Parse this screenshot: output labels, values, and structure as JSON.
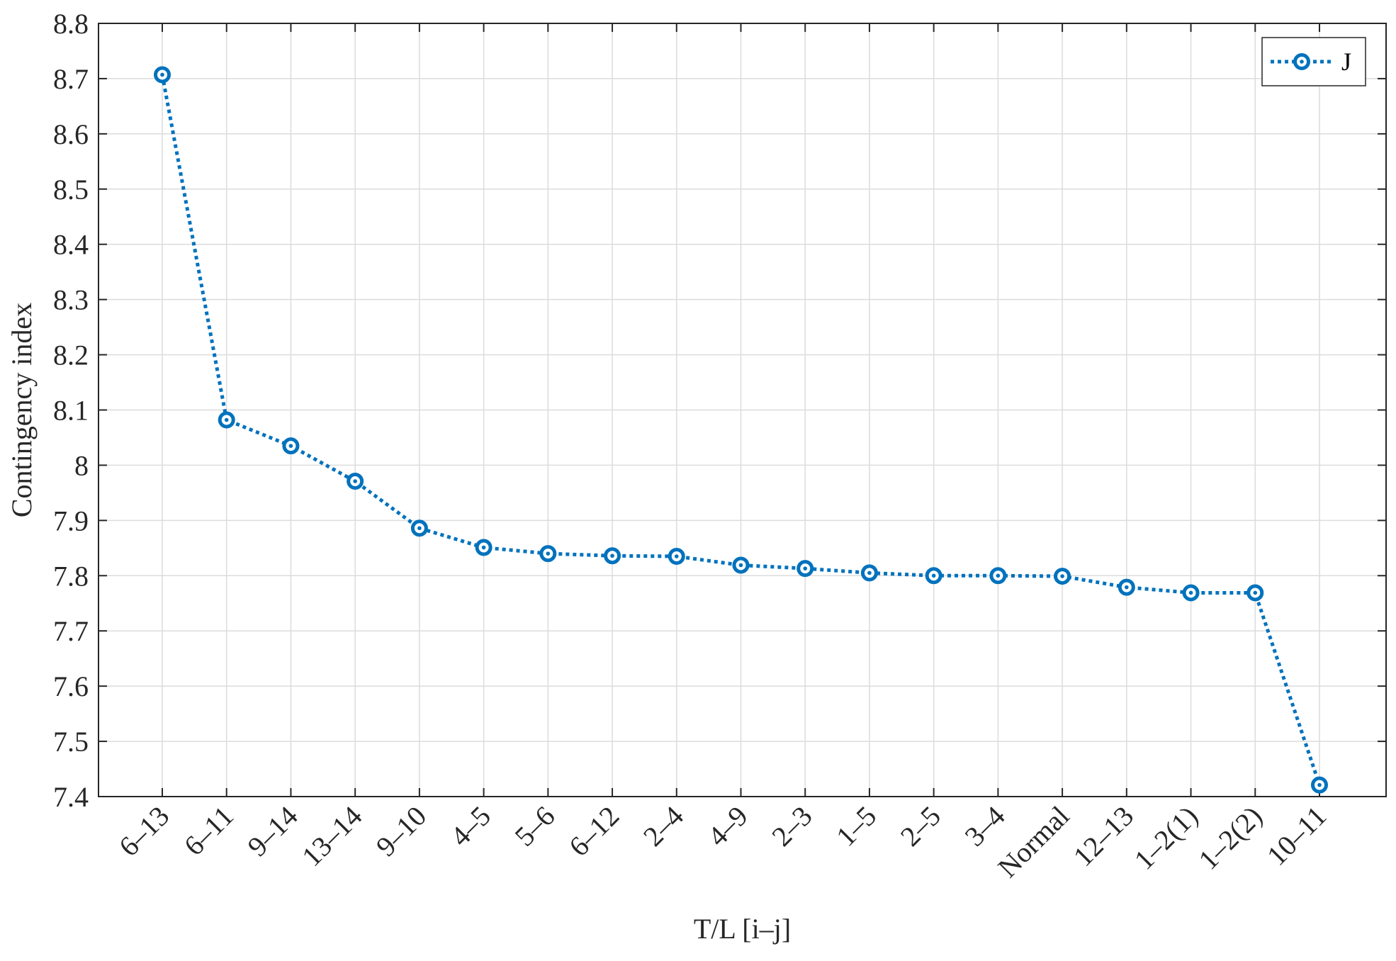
{
  "chart_data": {
    "type": "line",
    "xlabel": "T/L [i–j]",
    "ylabel": "Contingency index",
    "ylim": [
      7.4,
      8.8
    ],
    "yticks": [
      7.4,
      7.5,
      7.6,
      7.7,
      7.8,
      7.9,
      8,
      8.1,
      8.2,
      8.3,
      8.4,
      8.5,
      8.6,
      8.7,
      8.8
    ],
    "categories": [
      "6–13",
      "6–11",
      "9–14",
      "13–14",
      "9–10",
      "4–5",
      "5–6",
      "6–12",
      "2–4",
      "4–9",
      "2–3",
      "1–5",
      "2–5",
      "3–4",
      "Normal",
      "12–13",
      "1–2(1)",
      "1–2(2)",
      "10–11"
    ],
    "grid": true,
    "legend_position": "top-right",
    "series": [
      {
        "name": "J",
        "color": "#0072BD",
        "line_style": "dotted",
        "marker": "circle-with-dot",
        "values": [
          8.707,
          8.082,
          8.035,
          7.971,
          7.886,
          7.851,
          7.84,
          7.836,
          7.835,
          7.819,
          7.813,
          7.805,
          7.8,
          7.8,
          7.799,
          7.779,
          7.769,
          7.769,
          7.421
        ]
      }
    ]
  }
}
